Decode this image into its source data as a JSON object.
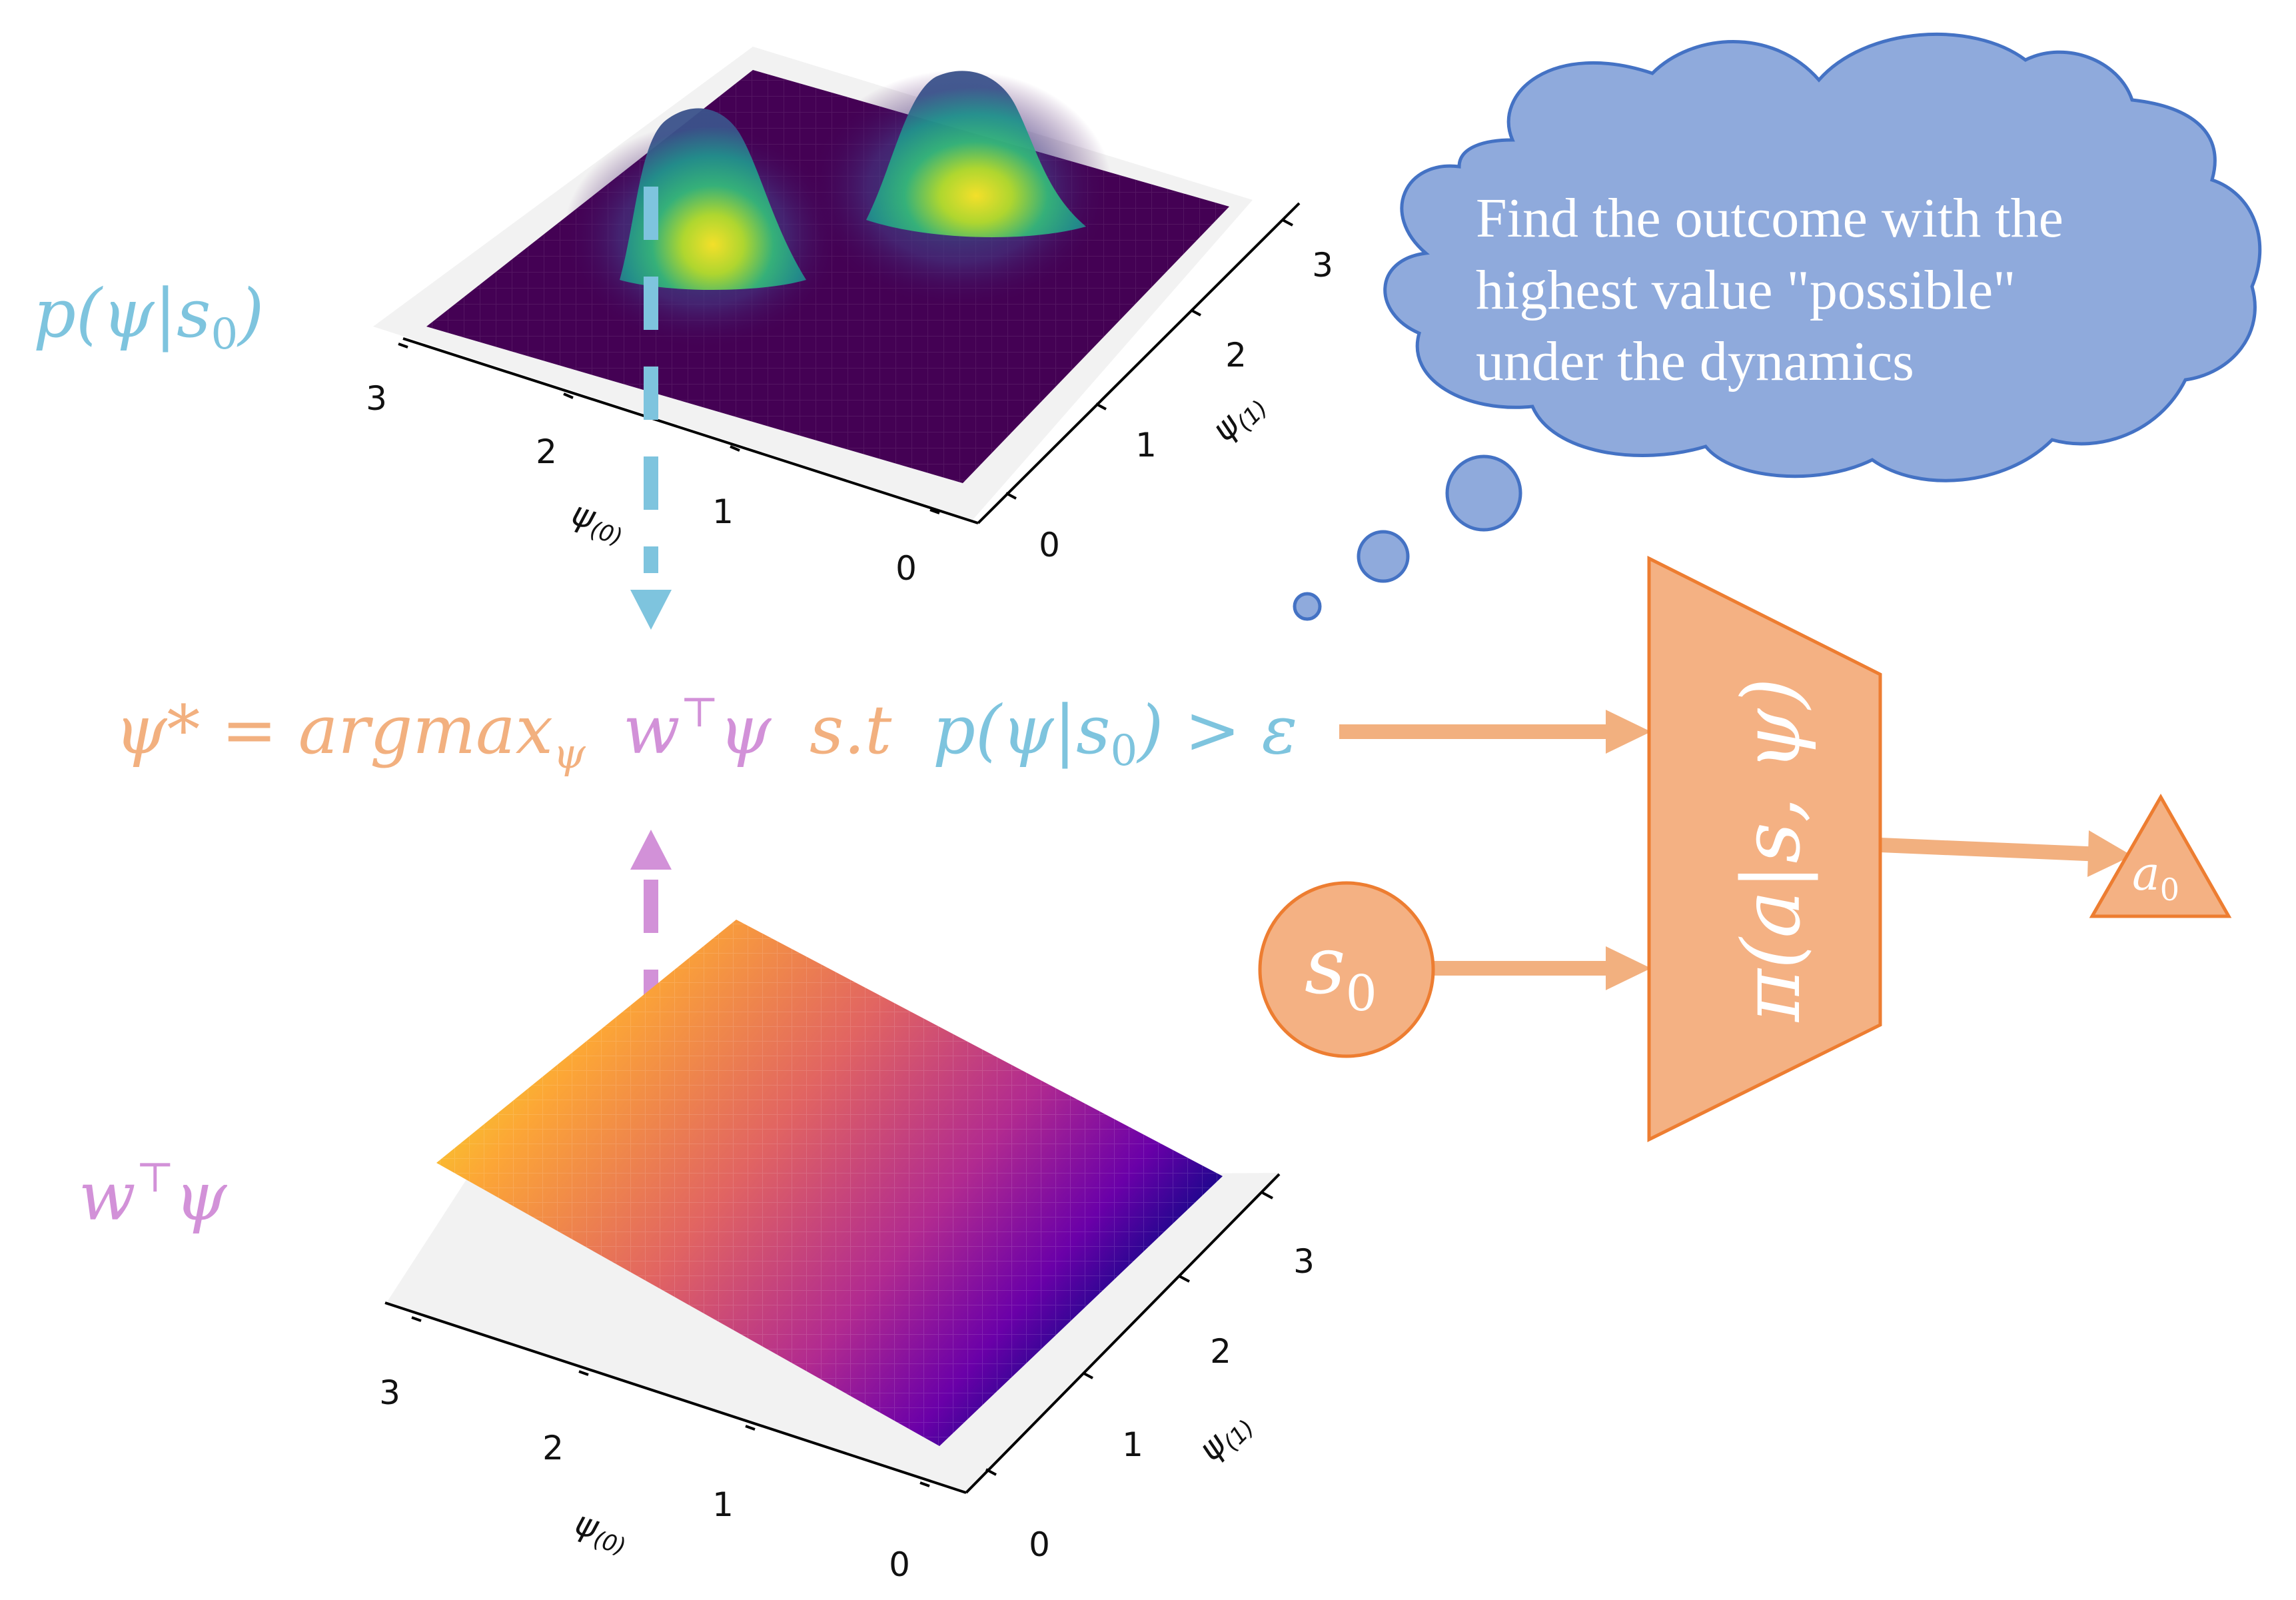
{
  "colors": {
    "blue": "#7ec4de",
    "orange": "#f2b07f",
    "orange_stroke": "#ed7d31",
    "purple": "#d291d8",
    "cloud_fill": "#8faadc",
    "cloud_stroke": "#4472c4",
    "white": "#ffffff"
  },
  "top_plot": {
    "label": {
      "p": "p(",
      "psi": "ψ",
      "bar": "|",
      "s": "s",
      "sub": "0",
      "close": ")"
    },
    "x_ticks": [
      "3",
      "2",
      "1",
      "0"
    ],
    "y_ticks": [
      "0",
      "1",
      "2",
      "3"
    ],
    "x_axis_label": {
      "main": "ψ",
      "sub": "(0)"
    },
    "y_axis_label": {
      "main": "ψ",
      "sub": "(1)"
    },
    "colormap": "viridis",
    "peaks": 2
  },
  "bottom_plot": {
    "label": {
      "w": "w",
      "sup": "⊤",
      "psi": "ψ"
    },
    "x_ticks": [
      "3",
      "2",
      "1",
      "0"
    ],
    "y_ticks": [
      "0",
      "1",
      "2",
      "3"
    ],
    "x_axis_label": {
      "main": "ψ",
      "sub": "(0)"
    },
    "y_axis_label": {
      "main": "ψ",
      "sub": "(1)"
    },
    "colormap": "plasma"
  },
  "equation": {
    "part1": "ψ* = argmax",
    "part1_sub": "ψ",
    "part2": "w",
    "part2_sup": "⊤",
    "part2_psi": "ψ",
    "part3": "s.t",
    "part4": "p(ψ|s",
    "part4_sub": "0",
    "part4_close": ") > ε"
  },
  "cloud": {
    "lines": [
      "Find the outcome with the",
      "highest value \"possible\"",
      "under the dynamics"
    ]
  },
  "policy": {
    "pi": "π(",
    "a": "a",
    "bar": "|",
    "s": "s, ψ",
    "close": ")"
  },
  "state": {
    "s": "s",
    "sub": "0"
  },
  "action": {
    "a": "a",
    "sub": "0"
  }
}
